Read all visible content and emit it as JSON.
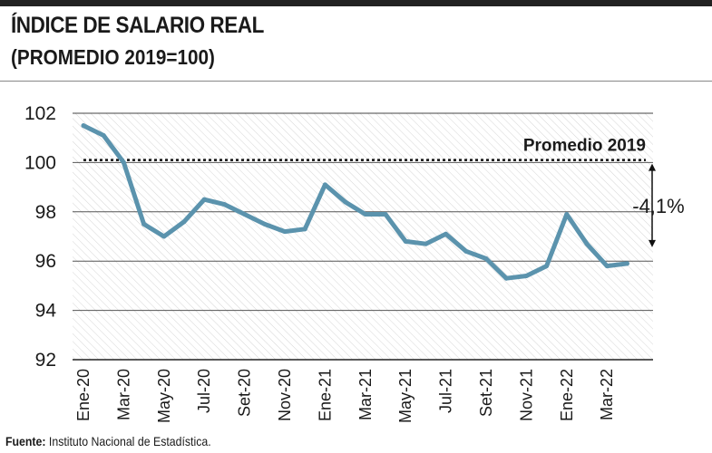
{
  "header": {
    "title": "ÍNDICE DE SALARIO REAL",
    "subtitle": "(PROMEDIO 2019=100)"
  },
  "footer": {
    "source_label": "Fuente:",
    "source_text": "Instituto Nacional de Estadística."
  },
  "chart_data": {
    "type": "line",
    "title": "ÍNDICE DE SALARIO REAL",
    "subtitle": "(PROMEDIO 2019=100)",
    "xlabel": "",
    "ylabel": "",
    "ylim": [
      92,
      102
    ],
    "yticks": [
      92,
      94,
      96,
      98,
      100,
      102
    ],
    "grid": true,
    "series_color": "#5b93ad",
    "x": [
      "Ene-20",
      "Feb-20",
      "Mar-20",
      "Abr-20",
      "May-20",
      "Jun-20",
      "Jul-20",
      "Ago-20",
      "Set-20",
      "Oct-20",
      "Nov-20",
      "Dic-20",
      "Ene-21",
      "Feb-21",
      "Mar-21",
      "Abr-21",
      "May-21",
      "Jun-21",
      "Jul-21",
      "Ago-21",
      "Set-21",
      "Oct-21",
      "Nov-21",
      "Dic-21",
      "Ene-22",
      "Feb-22",
      "Mar-22",
      "Abr-22"
    ],
    "x_tick_labels": [
      "Ene-20",
      "Mar-20",
      "May-20",
      "Jul-20",
      "Set-20",
      "Nov-20",
      "Ene-21",
      "Mar-21",
      "May-21",
      "Jul-21",
      "Set-21",
      "Nov-21",
      "Ene-22",
      "Mar-22"
    ],
    "series": [
      {
        "values": [
          101.5,
          101.1,
          100.0,
          97.5,
          97.0,
          97.6,
          98.5,
          98.3,
          97.9,
          97.5,
          97.2,
          97.3,
          99.1,
          98.4,
          97.9,
          97.9,
          96.8,
          96.7,
          97.1,
          96.4,
          96.1,
          95.3,
          95.4,
          95.8,
          97.9,
          96.7,
          95.8,
          95.9
        ]
      }
    ],
    "reference_line": {
      "value": 100.1,
      "label": "Promedio 2019"
    },
    "annotation": {
      "label": "-4,1%"
    }
  }
}
